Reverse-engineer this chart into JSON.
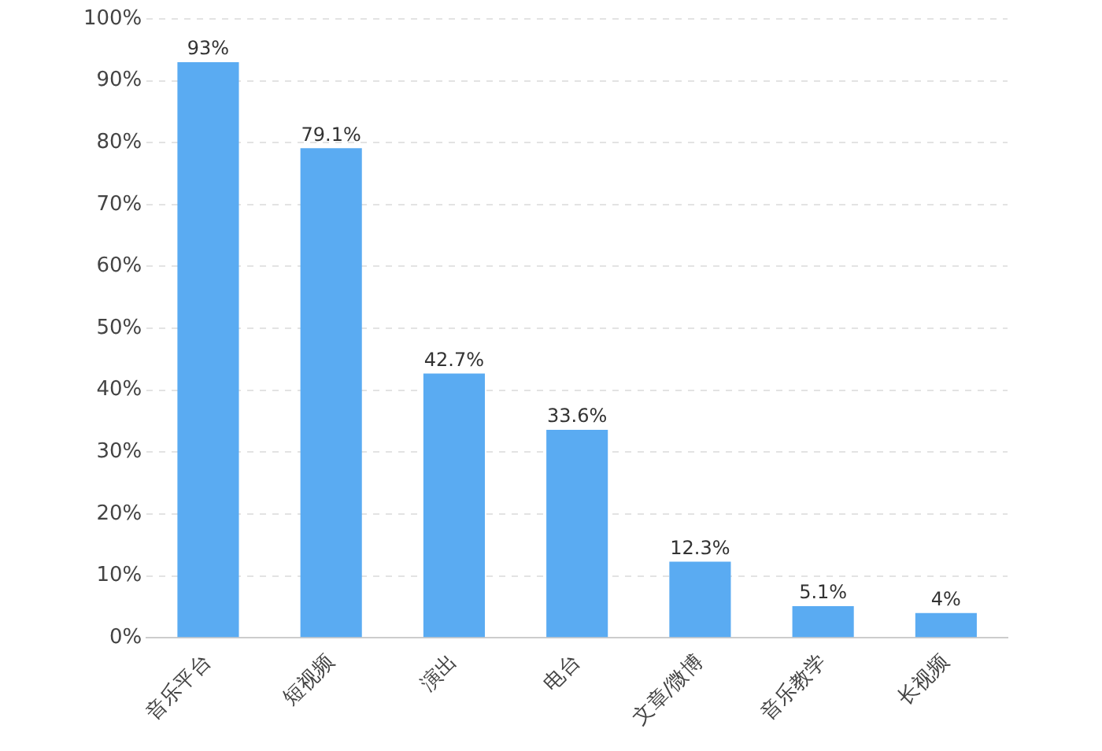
{
  "chart_data": {
    "type": "bar",
    "categories": [
      "音乐平台",
      "短视频",
      "演出",
      "电台",
      "文章/微博",
      "音乐教学",
      "长视频"
    ],
    "values": [
      93,
      79.1,
      42.7,
      33.6,
      12.3,
      5.1,
      4
    ],
    "value_labels": [
      "93%",
      "79.1%",
      "42.7%",
      "33.6%",
      "12.3%",
      "5.1%",
      "4%"
    ],
    "color": "#5aabf2",
    "ylim": [
      0,
      100
    ],
    "yticks": [
      {
        "value": 0,
        "label": "0%"
      },
      {
        "value": 10,
        "label": "10%"
      },
      {
        "value": 20,
        "label": "20%"
      },
      {
        "value": 30,
        "label": "30%"
      },
      {
        "value": 40,
        "label": "40%"
      },
      {
        "value": 50,
        "label": "50%"
      },
      {
        "value": 60,
        "label": "60%"
      },
      {
        "value": 70,
        "label": "70%"
      },
      {
        "value": 80,
        "label": "80%"
      },
      {
        "value": 90,
        "label": "90%"
      },
      {
        "value": 100,
        "label": "100%"
      }
    ],
    "grid": "y",
    "legend": false
  }
}
